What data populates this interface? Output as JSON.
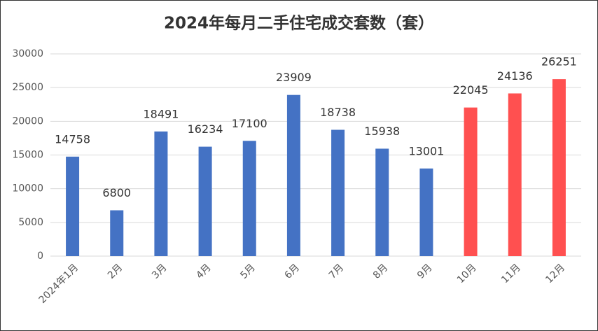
{
  "chart_data": {
    "type": "bar",
    "title": "2024年每月二手住宅成交套数（套）",
    "categories": [
      "2024年1月",
      "2月",
      "3月",
      "4月",
      "5月",
      "6月",
      "7月",
      "8月",
      "9月",
      "10月",
      "11月",
      "12月"
    ],
    "values": [
      14758,
      6800,
      18491,
      16234,
      17100,
      23909,
      18738,
      15938,
      13001,
      22045,
      24136,
      26251
    ],
    "colors": [
      "#4472c4",
      "#4472c4",
      "#4472c4",
      "#4472c4",
      "#4472c4",
      "#4472c4",
      "#4472c4",
      "#4472c4",
      "#4472c4",
      "#ff5050",
      "#ff5050",
      "#ff5050"
    ],
    "ylim": [
      0,
      30000
    ],
    "yticks": [
      0,
      5000,
      10000,
      15000,
      20000,
      25000,
      30000
    ],
    "grid": true
  }
}
